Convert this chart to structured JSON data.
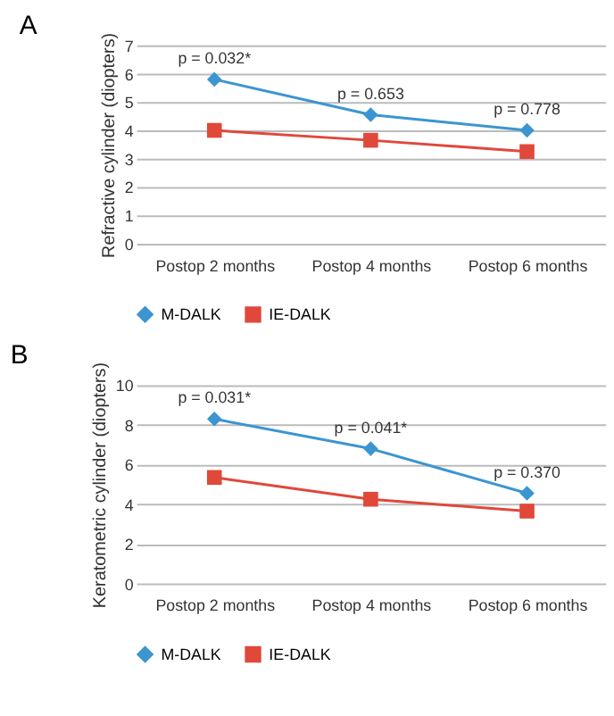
{
  "chart_data": [
    {
      "type": "line",
      "title": "A",
      "ylabel": "Refractive cylinder (diopters)",
      "categories": [
        "Postop 2 months",
        "Postop 4 months",
        "Postop 6 months"
      ],
      "series": [
        {
          "name": "M-DALK",
          "color": "#3c95d0",
          "marker": "diamond",
          "values": [
            5.8,
            4.55,
            4.0
          ]
        },
        {
          "name": "IE-DALK",
          "color": "#e0483a",
          "marker": "square",
          "values": [
            4.0,
            3.65,
            3.25
          ]
        }
      ],
      "ylim": [
        0,
        7
      ],
      "yticks": [
        0,
        1,
        2,
        3,
        4,
        5,
        6,
        7
      ],
      "grid": "y",
      "legend": "bottom",
      "annotations": [
        "p = 0.032*",
        "p = 0.653",
        "p = 0.778"
      ]
    },
    {
      "type": "line",
      "title": "B",
      "ylabel": "Keratometric cylinder (diopters)",
      "categories": [
        "Postop 2 months",
        "Postop 4 months",
        "Postop 6 months"
      ],
      "series": [
        {
          "name": "M-DALK",
          "color": "#3c95d0",
          "marker": "diamond",
          "values": [
            8.3,
            6.8,
            4.55
          ]
        },
        {
          "name": "IE-DALK",
          "color": "#e0483a",
          "marker": "square",
          "values": [
            5.35,
            4.25,
            3.65
          ]
        }
      ],
      "ylim": [
        0,
        10
      ],
      "yticks": [
        0,
        2,
        4,
        6,
        8,
        10
      ],
      "grid": "y",
      "legend": "bottom",
      "annotations": [
        "p = 0.031*",
        "p = 0.041*",
        "p = 0.370"
      ]
    }
  ]
}
